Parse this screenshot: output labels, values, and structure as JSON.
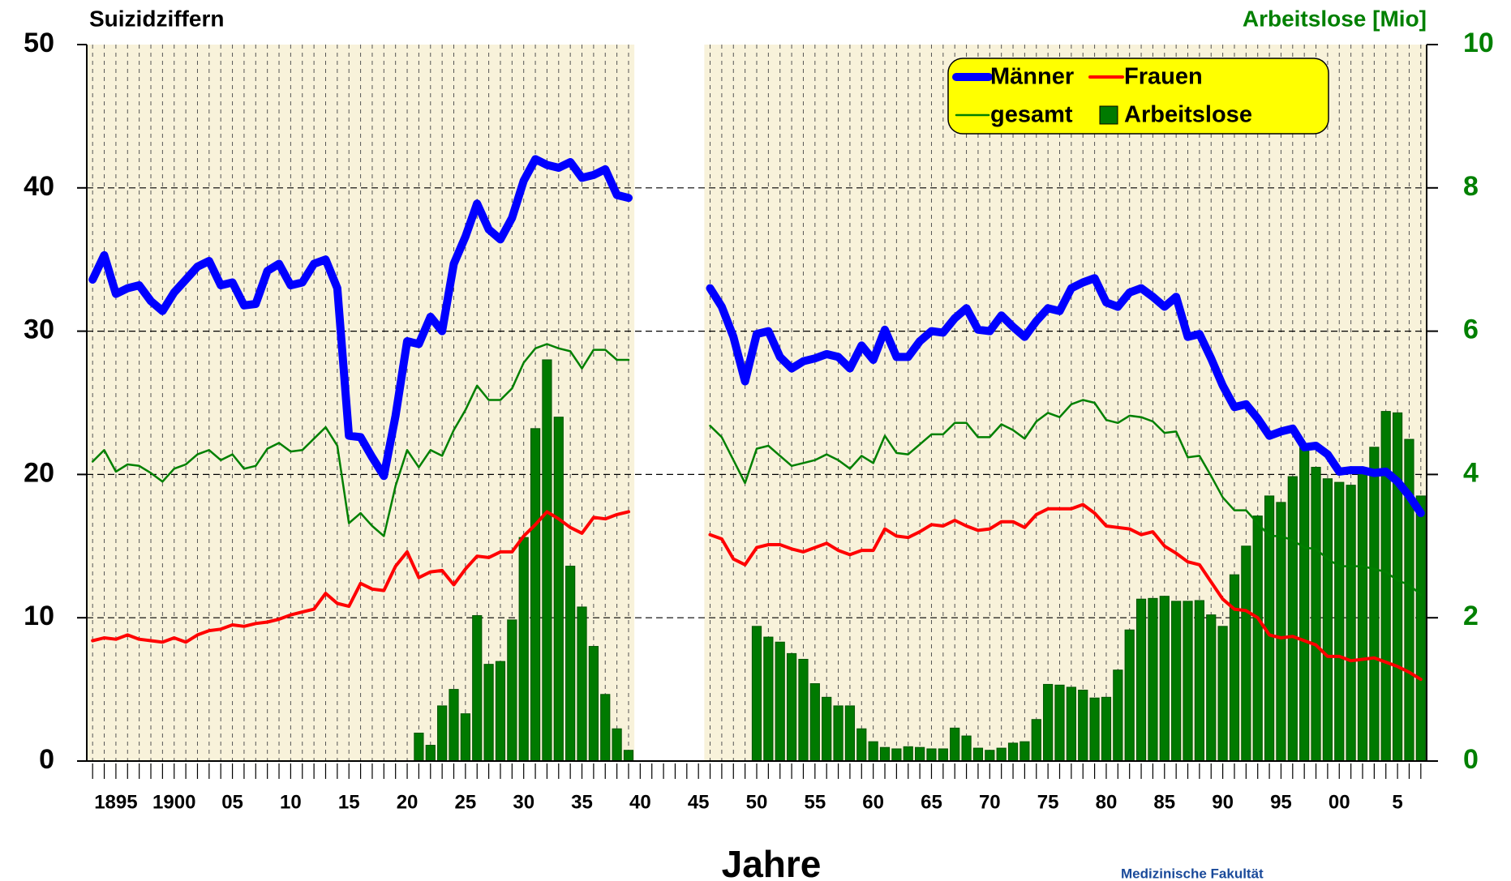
{
  "chart_data": {
    "type": "line",
    "title": "Suizidziffern",
    "y2_title": "Arbeitslose [Mio]",
    "xlabel": "Jahre",
    "annotation": "Medizinische Fakultät",
    "x": [
      1893,
      1894,
      1895,
      1896,
      1897,
      1898,
      1899,
      1900,
      1901,
      1902,
      1903,
      1904,
      1905,
      1906,
      1907,
      1908,
      1909,
      1910,
      1911,
      1912,
      1913,
      1914,
      1915,
      1916,
      1917,
      1918,
      1919,
      1920,
      1921,
      1922,
      1923,
      1924,
      1925,
      1926,
      1927,
      1928,
      1929,
      1930,
      1931,
      1932,
      1933,
      1934,
      1935,
      1936,
      1937,
      1938,
      1939,
      1940,
      1941,
      1942,
      1943,
      1944,
      1945,
      1946,
      1947,
      1948,
      1949,
      1950,
      1951,
      1952,
      1953,
      1954,
      1955,
      1956,
      1957,
      1958,
      1959,
      1960,
      1961,
      1962,
      1963,
      1964,
      1965,
      1966,
      1967,
      1968,
      1969,
      1970,
      1971,
      1972,
      1973,
      1974,
      1975,
      1976,
      1977,
      1978,
      1979,
      1980,
      1981,
      1982,
      1983,
      1984,
      1985,
      1986,
      1987,
      1988,
      1989,
      1990,
      1991,
      1992,
      1993,
      1994,
      1995,
      1996,
      1997,
      1998,
      1999,
      2000,
      2001,
      2002,
      2003,
      2004,
      2005,
      2006,
      2007
    ],
    "series": [
      {
        "name": "Männer",
        "type": "line",
        "color": "#0000ff",
        "width": 10,
        "values": [
          33.6,
          35.3,
          32.6,
          33.0,
          33.2,
          32.1,
          31.4,
          32.7,
          33.6,
          34.5,
          34.9,
          33.2,
          33.4,
          31.8,
          31.9,
          34.2,
          34.7,
          33.2,
          33.4,
          34.7,
          35.0,
          33.0,
          22.7,
          22.6,
          21.2,
          19.9,
          24.1,
          29.3,
          29.1,
          31.0,
          30.0,
          34.7,
          36.6,
          38.9,
          37.1,
          36.4,
          37.9,
          40.5,
          42.0,
          41.6,
          41.4,
          41.8,
          40.7,
          40.9,
          41.3,
          39.5,
          39.3,
          null,
          null,
          null,
          null,
          null,
          null,
          33.0,
          31.7,
          29.6,
          26.5,
          29.8,
          30.0,
          28.2,
          27.4,
          27.9,
          28.1,
          28.4,
          28.2,
          27.4,
          29.0,
          28.0,
          30.1,
          28.2,
          28.2,
          29.3,
          30.0,
          29.9,
          30.9,
          31.6,
          30.1,
          30.0,
          31.1,
          30.3,
          29.6,
          30.7,
          31.6,
          31.4,
          33.0,
          33.4,
          33.7,
          32.0,
          31.7,
          32.7,
          33.0,
          32.4,
          31.7,
          32.4,
          29.6,
          29.8,
          28.1,
          26.2,
          24.7,
          24.9,
          23.9,
          22.7,
          23.0,
          23.2,
          21.9,
          22.0,
          21.4,
          20.2,
          20.3,
          20.3,
          20.1,
          20.2,
          19.5,
          18.5,
          17.3
        ]
      },
      {
        "name": "Frauen",
        "type": "line",
        "color": "#ff0000",
        "width": 4,
        "values": [
          8.4,
          8.6,
          8.5,
          8.8,
          8.5,
          8.4,
          8.3,
          8.6,
          8.3,
          8.8,
          9.1,
          9.2,
          9.5,
          9.4,
          9.6,
          9.7,
          9.9,
          10.2,
          10.4,
          10.6,
          11.7,
          11.0,
          10.8,
          12.4,
          12.0,
          11.9,
          13.6,
          14.6,
          12.8,
          13.2,
          13.3,
          12.3,
          13.4,
          14.3,
          14.2,
          14.6,
          14.6,
          15.7,
          16.5,
          17.4,
          16.9,
          16.3,
          15.9,
          17.0,
          16.9,
          17.2,
          17.4,
          null,
          null,
          null,
          null,
          null,
          null,
          15.8,
          15.5,
          14.1,
          13.7,
          14.9,
          15.1,
          15.1,
          14.8,
          14.6,
          14.9,
          15.2,
          14.7,
          14.4,
          14.7,
          14.7,
          16.2,
          15.7,
          15.6,
          16.0,
          16.5,
          16.4,
          16.8,
          16.4,
          16.1,
          16.2,
          16.7,
          16.7,
          16.3,
          17.2,
          17.6,
          17.6,
          17.6,
          17.9,
          17.3,
          16.4,
          16.3,
          16.2,
          15.8,
          16.0,
          15.0,
          14.5,
          13.9,
          13.7,
          12.5,
          11.3,
          10.6,
          10.5,
          10.0,
          8.8,
          8.6,
          8.7,
          8.4,
          8.1,
          7.3,
          7.3,
          7.0,
          7.1,
          7.2,
          6.9,
          6.6,
          6.2,
          5.7
        ]
      },
      {
        "name": "gesamt",
        "type": "line",
        "color": "#008000",
        "width": 2.5,
        "values": [
          20.9,
          21.7,
          20.2,
          20.7,
          20.6,
          20.1,
          19.5,
          20.4,
          20.7,
          21.4,
          21.7,
          21.0,
          21.4,
          20.4,
          20.6,
          21.8,
          22.2,
          21.6,
          21.7,
          22.5,
          23.3,
          22.0,
          16.6,
          17.3,
          16.4,
          15.7,
          19.2,
          21.7,
          20.5,
          21.7,
          21.3,
          23.1,
          24.5,
          26.2,
          25.2,
          25.2,
          26.0,
          27.8,
          28.8,
          29.1,
          28.8,
          28.6,
          27.4,
          28.7,
          28.7,
          28.0,
          28.0,
          null,
          null,
          null,
          null,
          null,
          null,
          23.4,
          22.6,
          21.0,
          19.4,
          21.8,
          22.0,
          21.3,
          20.6,
          20.8,
          21.0,
          21.4,
          21.0,
          20.4,
          21.3,
          20.8,
          22.7,
          21.5,
          21.4,
          22.1,
          22.8,
          22.8,
          23.6,
          23.6,
          22.6,
          22.6,
          23.5,
          23.1,
          22.5,
          23.7,
          24.3,
          24.0,
          24.9,
          25.2,
          25.0,
          23.8,
          23.6,
          24.1,
          24.0,
          23.7,
          22.9,
          23.0,
          21.2,
          21.3,
          19.9,
          18.4,
          17.5,
          17.5,
          16.6,
          15.7,
          15.7,
          15.4,
          14.9,
          14.8,
          14.1,
          13.6,
          13.6,
          13.6,
          13.4,
          13.2,
          12.6,
          12.3,
          11.6
        ]
      },
      {
        "name": "Arbeitslose",
        "type": "bar",
        "axis": "y2",
        "color": "#007a00",
        "values": [
          null,
          null,
          null,
          null,
          null,
          null,
          null,
          null,
          null,
          null,
          null,
          null,
          null,
          null,
          null,
          null,
          null,
          null,
          null,
          null,
          null,
          null,
          null,
          null,
          null,
          null,
          null,
          null,
          0.39,
          0.22,
          0.77,
          1.0,
          0.66,
          2.03,
          1.35,
          1.39,
          1.97,
          3.12,
          4.64,
          5.6,
          4.8,
          2.72,
          2.15,
          1.6,
          0.93,
          0.45,
          0.15,
          null,
          null,
          null,
          null,
          null,
          null,
          null,
          null,
          null,
          null,
          1.88,
          1.73,
          1.66,
          1.5,
          1.42,
          1.08,
          0.89,
          0.77,
          0.77,
          0.45,
          0.27,
          0.19,
          0.17,
          0.2,
          0.19,
          0.17,
          0.17,
          0.46,
          0.35,
          0.18,
          0.15,
          0.18,
          0.25,
          0.27,
          0.58,
          1.07,
          1.06,
          1.03,
          0.99,
          0.88,
          0.89,
          1.27,
          1.83,
          2.26,
          2.27,
          2.3,
          2.23,
          2.23,
          2.24,
          2.04,
          1.88,
          2.6,
          3.0,
          3.42,
          3.7,
          3.61,
          3.97,
          4.38,
          4.1,
          3.94,
          3.89,
          3.85,
          4.06,
          4.38,
          4.88,
          4.86,
          4.49,
          3.7
        ]
      }
    ],
    "xlim": [
      1892.5,
      2007.5
    ],
    "xticks": [
      1895,
      1900,
      {
        "value": 1905,
        "label": "05"
      },
      {
        "value": 1910,
        "label": "10"
      },
      {
        "value": 1915,
        "label": "15"
      },
      {
        "value": 1920,
        "label": "20"
      },
      {
        "value": 1925,
        "label": "25"
      },
      {
        "value": 1930,
        "label": "30"
      },
      {
        "value": 1935,
        "label": "35"
      },
      {
        "value": 1940,
        "label": "40"
      },
      {
        "value": 1945,
        "label": "45"
      },
      {
        "value": 1950,
        "label": "50"
      },
      {
        "value": 1955,
        "label": "55"
      },
      {
        "value": 1960,
        "label": "60"
      },
      {
        "value": 1965,
        "label": "65"
      },
      {
        "value": 1970,
        "label": "70"
      },
      {
        "value": 1975,
        "label": "75"
      },
      {
        "value": 1980,
        "label": "80"
      },
      {
        "value": 1985,
        "label": "85"
      },
      {
        "value": 1990,
        "label": "90"
      },
      {
        "value": 1995,
        "label": "95"
      },
      {
        "value": 2000,
        "label": "00"
      },
      {
        "value": 2005,
        "label": "5"
      }
    ],
    "ylim": [
      0,
      50
    ],
    "yticks": [
      0,
      10,
      20,
      30,
      40,
      50
    ],
    "y2lim": [
      0,
      10
    ],
    "y2ticks": [
      0,
      2,
      4,
      6,
      8,
      10
    ],
    "y2color": "#008000",
    "grid": true,
    "background": "#f8f2da",
    "legend": "top-right"
  }
}
